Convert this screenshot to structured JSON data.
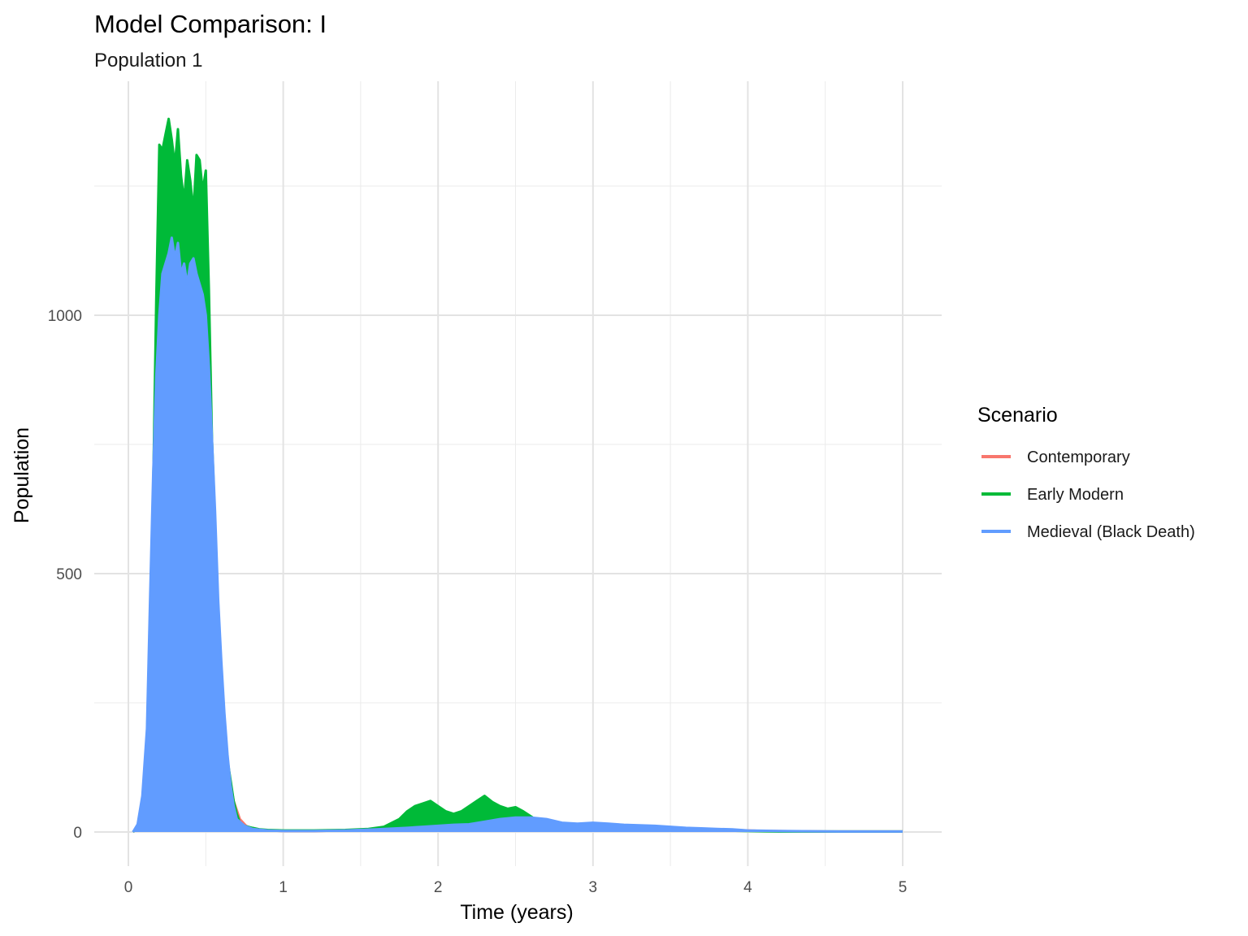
{
  "chart_data": {
    "type": "line",
    "title": "Model Comparison: I",
    "subtitle": "Population 1",
    "xlabel": "Time (years)",
    "ylabel": "Population",
    "xlim": [
      0,
      5
    ],
    "ylim": [
      -60,
      1400
    ],
    "x_ticks": [
      0,
      1,
      2,
      3,
      4,
      5
    ],
    "x_tick_labels": [
      "0",
      "1",
      "2",
      "3",
      "4",
      "5"
    ],
    "y_ticks": [
      0,
      500,
      1000
    ],
    "y_tick_labels": [
      "0",
      "500",
      "1000"
    ],
    "x_minor_gridlines": [
      0.5,
      1.5,
      2.5,
      3.5,
      4.5
    ],
    "y_minor_gridlines": [
      250,
      750,
      1250
    ],
    "grid": true,
    "legend": {
      "title": "Scenario",
      "position": "right"
    },
    "series": [
      {
        "name": "Contemporary",
        "color": "#F8766D",
        "x": [
          0.03,
          0.08,
          0.12,
          0.16,
          0.2,
          0.24,
          0.28,
          0.32,
          0.36,
          0.4,
          0.44,
          0.48,
          0.52,
          0.56,
          0.6,
          0.64,
          0.68,
          0.72,
          0.76,
          0.8,
          0.9,
          1.0,
          1.2,
          1.4,
          1.6,
          1.75,
          1.85,
          1.95,
          2.05,
          2.15,
          2.25,
          2.35,
          2.45,
          2.55,
          2.65,
          2.75,
          2.85,
          2.95,
          3.1,
          3.3,
          3.5,
          3.7,
          3.9,
          4.1,
          4.5,
          5.0
        ],
        "y": [
          0,
          15,
          90,
          330,
          880,
          1060,
          1100,
          1130,
          1150,
          1180,
          1170,
          1050,
          820,
          520,
          280,
          130,
          60,
          25,
          12,
          6,
          3,
          2,
          2,
          3,
          6,
          12,
          18,
          22,
          20,
          22,
          30,
          35,
          32,
          30,
          25,
          18,
          14,
          12,
          12,
          10,
          8,
          6,
          4,
          2,
          1,
          1
        ]
      },
      {
        "name": "Early Modern",
        "color": "#00BA38",
        "x": [
          0.03,
          0.06,
          0.09,
          0.12,
          0.14,
          0.16,
          0.18,
          0.2,
          0.22,
          0.24,
          0.26,
          0.28,
          0.3,
          0.32,
          0.34,
          0.36,
          0.38,
          0.4,
          0.42,
          0.44,
          0.46,
          0.48,
          0.5,
          0.52,
          0.54,
          0.56,
          0.58,
          0.6,
          0.62,
          0.64,
          0.66,
          0.68,
          0.7,
          0.72,
          0.75,
          0.8,
          0.85,
          0.9,
          1.0,
          1.2,
          1.4,
          1.55,
          1.65,
          1.75,
          1.8,
          1.85,
          1.9,
          1.95,
          2.0,
          2.05,
          2.1,
          2.15,
          2.2,
          2.25,
          2.3,
          2.35,
          2.4,
          2.45,
          2.5,
          2.55,
          2.6,
          2.65,
          2.7,
          2.8,
          2.9,
          3.0,
          3.2,
          3.4,
          3.6,
          3.8,
          4.0,
          4.2,
          4.6,
          5.0
        ],
        "y": [
          0,
          10,
          60,
          180,
          420,
          660,
          1030,
          1330,
          1320,
          1350,
          1380,
          1340,
          1290,
          1360,
          1270,
          1220,
          1300,
          1260,
          1200,
          1310,
          1300,
          1240,
          1280,
          1050,
          760,
          600,
          410,
          290,
          220,
          140,
          100,
          60,
          35,
          18,
          12,
          8,
          5,
          4,
          3,
          3,
          4,
          6,
          10,
          25,
          40,
          50,
          55,
          60,
          50,
          40,
          35,
          40,
          50,
          60,
          70,
          58,
          50,
          45,
          48,
          40,
          30,
          20,
          12,
          8,
          8,
          7,
          6,
          5,
          4,
          3,
          2,
          1,
          1,
          1
        ]
      },
      {
        "name": "Medieval (Black Death)",
        "color": "#619CFF",
        "x": [
          0.03,
          0.06,
          0.09,
          0.12,
          0.14,
          0.16,
          0.18,
          0.2,
          0.22,
          0.24,
          0.26,
          0.28,
          0.3,
          0.32,
          0.34,
          0.36,
          0.38,
          0.4,
          0.42,
          0.44,
          0.46,
          0.48,
          0.5,
          0.52,
          0.54,
          0.56,
          0.58,
          0.6,
          0.62,
          0.64,
          0.66,
          0.68,
          0.7,
          0.75,
          0.8,
          0.9,
          1.0,
          1.2,
          1.4,
          1.6,
          1.8,
          1.9,
          2.0,
          2.1,
          2.2,
          2.3,
          2.4,
          2.5,
          2.6,
          2.7,
          2.8,
          2.9,
          3.0,
          3.1,
          3.2,
          3.3,
          3.4,
          3.5,
          3.6,
          3.7,
          3.8,
          3.9,
          4.0,
          4.2,
          4.6,
          5.0
        ],
        "y": [
          0,
          15,
          70,
          200,
          450,
          690,
          880,
          1000,
          1080,
          1100,
          1120,
          1150,
          1110,
          1140,
          1080,
          1100,
          1060,
          1100,
          1110,
          1080,
          1060,
          1040,
          1000,
          900,
          760,
          620,
          450,
          330,
          230,
          150,
          90,
          50,
          25,
          12,
          6,
          3,
          2,
          2,
          3,
          5,
          8,
          10,
          12,
          14,
          15,
          20,
          25,
          28,
          28,
          25,
          18,
          16,
          18,
          16,
          14,
          13,
          12,
          10,
          8,
          7,
          6,
          5,
          3,
          2,
          1,
          1
        ]
      }
    ]
  }
}
